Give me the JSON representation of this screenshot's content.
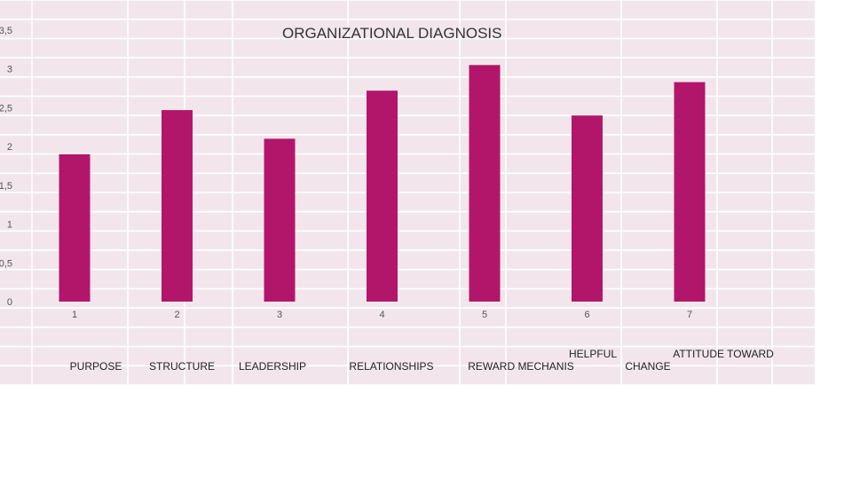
{
  "chart_data": {
    "type": "bar",
    "title": "ORGANIZATIONAL DIAGNOSIS",
    "xlabel": "",
    "ylabel": "",
    "ylim": [
      0,
      3.5
    ],
    "yticks": [
      "0",
      "0,5",
      "1",
      "1,5",
      "2",
      "2,5",
      "3",
      "3,5"
    ],
    "categories": [
      "1",
      "2",
      "3",
      "4",
      "5",
      "6",
      "7"
    ],
    "category_names": [
      [
        "PURPOSE"
      ],
      [
        "STRUCTURE"
      ],
      [
        "LEADERSHIP"
      ],
      [
        "RELATIONSHIPS"
      ],
      [
        "REWARD MECHANIS"
      ],
      [
        "HELPFUL"
      ],
      [
        "ATTITUDE TOWARD",
        "CHANGE"
      ]
    ],
    "values": [
      1.9,
      2.47,
      2.1,
      2.72,
      3.05,
      2.4,
      2.83
    ],
    "bar_color": "#b2166a",
    "grid": true,
    "legend": "none"
  },
  "colors": {
    "background_band": "#f2e6ec",
    "grid": "#ffffff"
  }
}
